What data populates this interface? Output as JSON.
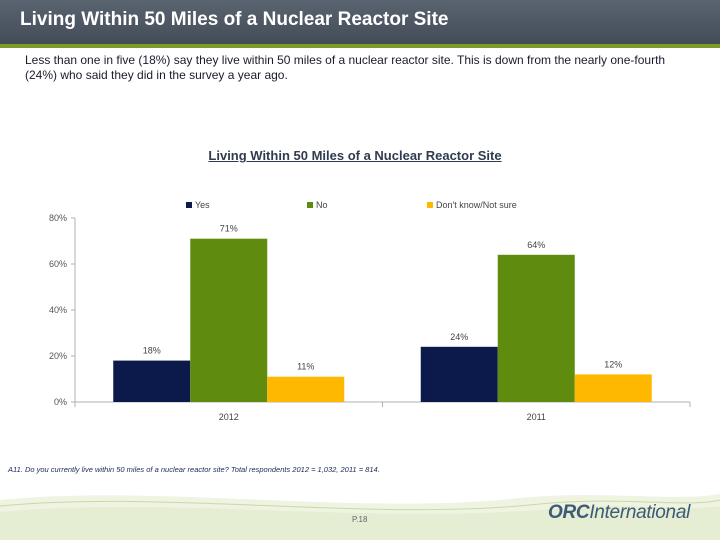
{
  "page": {
    "title": "Living Within 50 Miles of a Nuclear Reactor Site",
    "intro": "Less than one in five (18%) say they live within 50 miles of a nuclear reactor site.   This is down from the nearly one-fourth (24%) who said they did in the survey a year ago.",
    "footnote": "A11. Do you currently live within 50 miles of a nuclear reactor site?  Total respondents 2012 = 1,032, 2011 = 814.",
    "page_number": "P.18",
    "logo": {
      "part1": "ORC",
      "part2": "International"
    }
  },
  "colors": {
    "yes": "#0b1a4a",
    "no": "#5f8c0e",
    "dontknow": "#ffb800",
    "header": "#4a535e",
    "accent": "#7a9a2a"
  },
  "chart_data": {
    "type": "bar",
    "title": "Living Within 50 Miles of a Nuclear Reactor Site",
    "categories": [
      "2012",
      "2011"
    ],
    "series": [
      {
        "name": "Yes",
        "values": [
          18,
          24
        ],
        "labels": [
          "18%",
          "24%"
        ]
      },
      {
        "name": "No",
        "values": [
          71,
          64
        ],
        "labels": [
          "71%",
          "64%"
        ]
      },
      {
        "name": "Don't know/Not sure",
        "values": [
          11,
          12
        ],
        "labels": [
          "11%",
          "12%"
        ]
      }
    ],
    "yticks": [
      "0%",
      "20%",
      "40%",
      "60%",
      "80%"
    ],
    "ylim": [
      0,
      80
    ],
    "xlabel": "",
    "ylabel": "",
    "legend_position": "top"
  }
}
